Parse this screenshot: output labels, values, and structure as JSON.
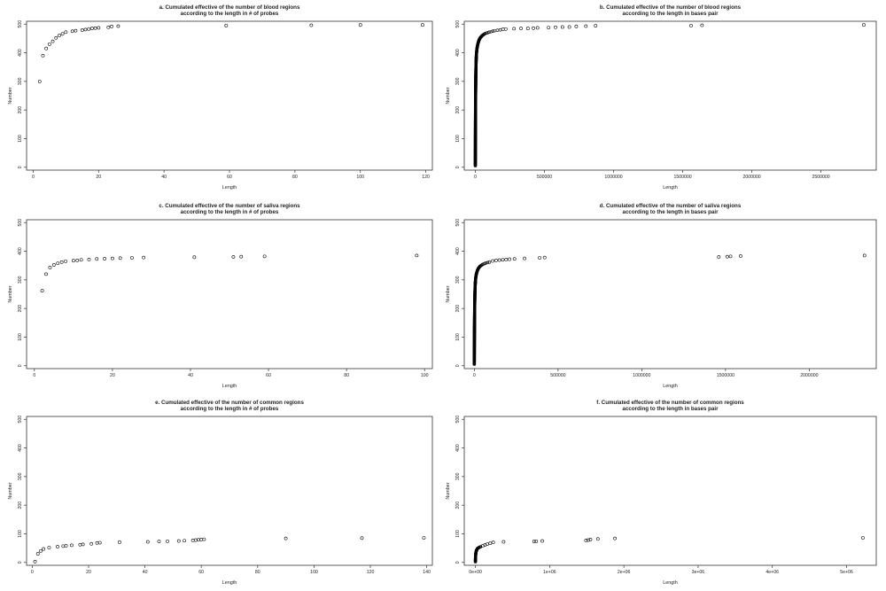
{
  "chart_data": [
    {
      "type": "scatter",
      "title_line1": "a. Cumulated effective of the number of blood regions",
      "title_line2": "according to the length in # of probes",
      "xlabel": "Length",
      "ylabel": "Number",
      "xlim": [
        -2,
        122
      ],
      "ylim": [
        -10,
        510
      ],
      "xticks": [
        0,
        20,
        40,
        60,
        80,
        100,
        120
      ],
      "xtick_labels": [
        "0",
        "20",
        "40",
        "60",
        "80",
        "100",
        "120"
      ],
      "yticks": [
        0,
        100,
        200,
        300,
        400,
        500
      ],
      "ytick_labels": [
        "0",
        "100",
        "200",
        "300",
        "400",
        "500"
      ],
      "points": [
        [
          2,
          300
        ],
        [
          3,
          390
        ],
        [
          4,
          415
        ],
        [
          5,
          430
        ],
        [
          6,
          440
        ],
        [
          7,
          452
        ],
        [
          8,
          460
        ],
        [
          9,
          466
        ],
        [
          10,
          472
        ],
        [
          12,
          475
        ],
        [
          13,
          477
        ],
        [
          15,
          479
        ],
        [
          16,
          481
        ],
        [
          17,
          483
        ],
        [
          18,
          485
        ],
        [
          19,
          486
        ],
        [
          20,
          487
        ],
        [
          23,
          489
        ],
        [
          24,
          492
        ],
        [
          26,
          493
        ],
        [
          59,
          495
        ],
        [
          85,
          496
        ],
        [
          100,
          497
        ],
        [
          119,
          497
        ]
      ]
    },
    {
      "type": "scatter",
      "title_line1": "b. Cumulated effective of the number of blood regions",
      "title_line2": "according to the length in bases pair",
      "xlabel": "Length",
      "ylabel": "Number",
      "xlim": [
        -80000,
        2900000
      ],
      "ylim": [
        -10,
        510
      ],
      "xticks": [
        0,
        500000,
        1000000,
        1500000,
        2000000,
        2500000
      ],
      "xtick_labels": [
        "0",
        "500000",
        "1000000",
        "1500000",
        "2000000",
        "2500000"
      ],
      "yticks": [
        0,
        100,
        200,
        300,
        400,
        500
      ],
      "ytick_labels": [
        "0",
        "100",
        "200",
        "300",
        "400",
        "500"
      ],
      "curve": [
        [
          0,
          5
        ],
        [
          400,
          60
        ],
        [
          1000,
          150
        ],
        [
          2000,
          250
        ],
        [
          3500,
          320
        ],
        [
          5000,
          360
        ],
        [
          8000,
          395
        ],
        [
          12000,
          415
        ],
        [
          18000,
          430
        ],
        [
          25000,
          442
        ],
        [
          35000,
          452
        ],
        [
          50000,
          460
        ],
        [
          70000,
          467
        ],
        [
          100000,
          472
        ],
        [
          140000,
          477
        ],
        [
          180000,
          480
        ]
      ],
      "points": [
        [
          200000,
          482
        ],
        [
          220000,
          483
        ],
        [
          280000,
          484
        ],
        [
          330000,
          485
        ],
        [
          380000,
          485
        ],
        [
          420000,
          486
        ],
        [
          450000,
          487
        ],
        [
          530000,
          488
        ],
        [
          580000,
          489
        ],
        [
          630000,
          490
        ],
        [
          680000,
          490
        ],
        [
          730000,
          492
        ],
        [
          800000,
          493
        ],
        [
          870000,
          494
        ],
        [
          1560000,
          495
        ],
        [
          1640000,
          496
        ],
        [
          2810000,
          497
        ]
      ]
    },
    {
      "type": "scatter",
      "title_line1": "c. Cumulated effective of the number of saliva regions",
      "title_line2": "according to the length in # of probes",
      "xlabel": "Length",
      "ylabel": "Number",
      "xlim": [
        -2,
        102
      ],
      "ylim": [
        -10,
        510
      ],
      "xticks": [
        0,
        20,
        40,
        60,
        80,
        100
      ],
      "xtick_labels": [
        "0",
        "20",
        "40",
        "60",
        "80",
        "100"
      ],
      "yticks": [
        0,
        100,
        200,
        300,
        400,
        500
      ],
      "ytick_labels": [
        "0",
        "100",
        "200",
        "300",
        "400",
        "500"
      ],
      "points": [
        [
          2,
          262
        ],
        [
          3,
          320
        ],
        [
          4,
          343
        ],
        [
          5,
          352
        ],
        [
          6,
          358
        ],
        [
          7,
          362
        ],
        [
          8,
          365
        ],
        [
          10,
          367
        ],
        [
          11,
          368
        ],
        [
          12,
          370
        ],
        [
          14,
          371
        ],
        [
          16,
          373
        ],
        [
          18,
          374
        ],
        [
          20,
          375
        ],
        [
          22,
          376
        ],
        [
          25,
          377
        ],
        [
          28,
          378
        ],
        [
          41,
          379
        ],
        [
          51,
          380
        ],
        [
          53,
          381
        ],
        [
          59,
          382
        ],
        [
          98,
          385
        ]
      ]
    },
    {
      "type": "scatter",
      "title_line1": "d. Cumulated effective of the number of saliva regions",
      "title_line2": "according to the length in bases pair",
      "xlabel": "Length",
      "ylabel": "Number",
      "xlim": [
        -60000,
        2400000
      ],
      "ylim": [
        -10,
        510
      ],
      "xticks": [
        0,
        500000,
        1000000,
        1500000,
        2000000
      ],
      "xtick_labels": [
        "0",
        "500000",
        "1000000",
        "1500000",
        "2000000"
      ],
      "yticks": [
        0,
        100,
        200,
        300,
        400,
        500
      ],
      "ytick_labels": [
        "0",
        "100",
        "200",
        "300",
        "400",
        "500"
      ],
      "curve": [
        [
          0,
          5
        ],
        [
          400,
          60
        ],
        [
          1000,
          130
        ],
        [
          2000,
          200
        ],
        [
          3500,
          250
        ],
        [
          5000,
          280
        ],
        [
          8000,
          305
        ],
        [
          12000,
          320
        ],
        [
          18000,
          332
        ],
        [
          25000,
          341
        ],
        [
          35000,
          348
        ],
        [
          50000,
          354
        ],
        [
          70000,
          359
        ],
        [
          90000,
          362
        ]
      ],
      "points": [
        [
          110000,
          366
        ],
        [
          130000,
          368
        ],
        [
          150000,
          369
        ],
        [
          170000,
          370
        ],
        [
          190000,
          371
        ],
        [
          210000,
          372
        ],
        [
          240000,
          373
        ],
        [
          300000,
          375
        ],
        [
          390000,
          377
        ],
        [
          420000,
          378
        ],
        [
          1460000,
          380
        ],
        [
          1510000,
          381
        ],
        [
          1530000,
          382
        ],
        [
          1590000,
          383
        ],
        [
          2330000,
          385
        ]
      ]
    },
    {
      "type": "scatter",
      "title_line1": "e. Cumulated effective of the number of common regions",
      "title_line2": "according to the length in # of probes",
      "xlabel": "Length",
      "ylabel": "Number",
      "xlim": [
        -2,
        142
      ],
      "ylim": [
        -10,
        510
      ],
      "xticks": [
        0,
        20,
        40,
        60,
        80,
        100,
        120,
        140
      ],
      "xtick_labels": [
        "0",
        "20",
        "40",
        "60",
        "80",
        "100",
        "120",
        "140"
      ],
      "yticks": [
        0,
        100,
        200,
        300,
        400,
        500
      ],
      "ytick_labels": [
        "0",
        "100",
        "200",
        "300",
        "400",
        "500"
      ],
      "points": [
        [
          1,
          3
        ],
        [
          2,
          30
        ],
        [
          3,
          40
        ],
        [
          4,
          47
        ],
        [
          6,
          52
        ],
        [
          9,
          55
        ],
        [
          11,
          57
        ],
        [
          12,
          58
        ],
        [
          14,
          60
        ],
        [
          17,
          62
        ],
        [
          18,
          63
        ],
        [
          21,
          65
        ],
        [
          23,
          68
        ],
        [
          24,
          69
        ],
        [
          31,
          71
        ],
        [
          41,
          72
        ],
        [
          45,
          73
        ],
        [
          48,
          74
        ],
        [
          52,
          75
        ],
        [
          54,
          76
        ],
        [
          57,
          77
        ],
        [
          58,
          78
        ],
        [
          59,
          79
        ],
        [
          60,
          80
        ],
        [
          61,
          81
        ],
        [
          90,
          84
        ],
        [
          117,
          85
        ],
        [
          139,
          86
        ]
      ]
    },
    {
      "type": "scatter",
      "title_line1": "f. Cumulated effective of the number of common regions",
      "title_line2": "according to the length in bases pair",
      "xlabel": "Length",
      "ylabel": "Number",
      "xlim": [
        -150000,
        5400000
      ],
      "ylim": [
        -10,
        510
      ],
      "xticks": [
        0,
        1000000,
        2000000,
        3000000,
        4000000,
        5000000
      ],
      "xtick_labels": [
        "0e+00",
        "1e+06",
        "2e+06",
        "3e+06",
        "4e+06",
        "5e+06"
      ],
      "yticks": [
        0,
        100,
        200,
        300,
        400,
        500
      ],
      "ytick_labels": [
        "0",
        "100",
        "200",
        "300",
        "400",
        "500"
      ],
      "curve": [
        [
          0,
          2
        ],
        [
          1000,
          12
        ],
        [
          2000,
          20
        ],
        [
          4000,
          28
        ],
        [
          7000,
          34
        ],
        [
          10000,
          38
        ],
        [
          15000,
          42
        ],
        [
          22000,
          46
        ],
        [
          30000,
          49
        ],
        [
          40000,
          51
        ],
        [
          55000,
          53
        ],
        [
          70000,
          55
        ]
      ],
      "points": [
        [
          100000,
          58
        ],
        [
          130000,
          61
        ],
        [
          160000,
          64
        ],
        [
          200000,
          67
        ],
        [
          240000,
          70
        ],
        [
          380000,
          72
        ],
        [
          790000,
          73
        ],
        [
          820000,
          74
        ],
        [
          900000,
          75
        ],
        [
          1490000,
          77
        ],
        [
          1520000,
          78
        ],
        [
          1550000,
          80
        ],
        [
          1650000,
          82
        ],
        [
          1880000,
          84
        ],
        [
          5220000,
          86
        ]
      ]
    }
  ]
}
